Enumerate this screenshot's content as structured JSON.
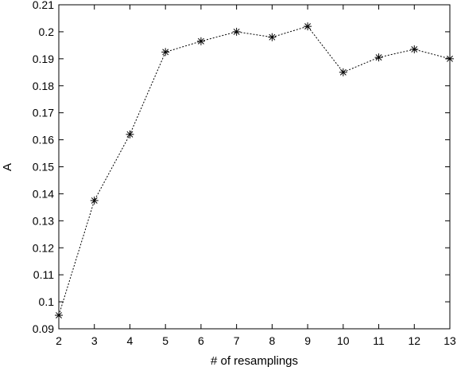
{
  "chart_data": {
    "type": "line",
    "title": "",
    "xlabel": "# of resamplings",
    "ylabel": "A",
    "xlim": [
      2,
      13
    ],
    "ylim": [
      0.09,
      0.21
    ],
    "xticks": [
      "2",
      "3",
      "4",
      "5",
      "6",
      "7",
      "8",
      "9",
      "10",
      "11",
      "12",
      "13"
    ],
    "yticks": [
      "0.09",
      "0.1",
      "0.11",
      "0.12",
      "0.13",
      "0.14",
      "0.15",
      "0.16",
      "0.17",
      "0.18",
      "0.19",
      "0.2",
      "0.21"
    ],
    "grid": false,
    "marker": "asterisk",
    "line_style": "dotted",
    "color": "#000000",
    "x": [
      2,
      3,
      4,
      5,
      6,
      7,
      8,
      9,
      10,
      11,
      12,
      13
    ],
    "values": [
      0.095,
      0.1375,
      0.162,
      0.1925,
      0.1965,
      0.2,
      0.198,
      0.202,
      0.185,
      0.1905,
      0.1935,
      0.19
    ]
  }
}
